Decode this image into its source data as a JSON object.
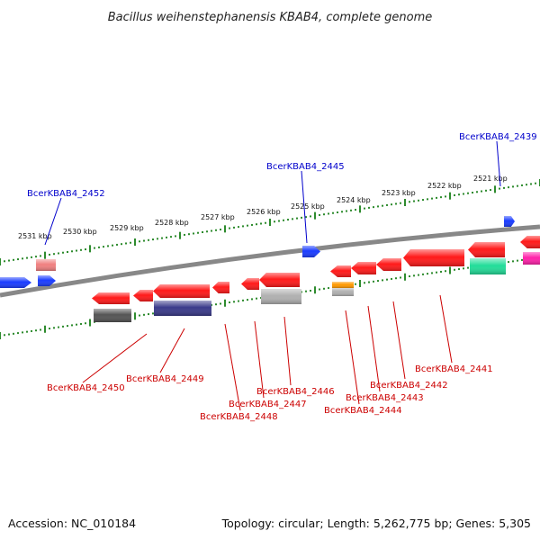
{
  "title": "Bacillus weihenstephanensis KBAB4, complete genome",
  "footer": {
    "accession": "Accession: NC_010184",
    "stats": "Topology: circular; Length: 5,262,775 bp; Genes: 5,305"
  },
  "colors": {
    "backbone": "#888888",
    "ruler": "#2e8b2e",
    "label_top": "#0000cc",
    "label_bottom": "#cc0000",
    "gene_red": "#ff1a1a",
    "gene_blue": "#1a3cff",
    "gene_pink": "#f08080",
    "gene_gray": "#555555",
    "gene_navy": "#3a3a8a",
    "gene_lightgray": "#b0b0b0",
    "gene_orange": "#ff9900",
    "gene_green": "#22dd99",
    "gene_magenta": "#ff22aa"
  },
  "kbp_ticks": [
    "2531 kbp",
    "2530 kbp",
    "2529 kbp",
    "2528 kbp",
    "2527 kbp",
    "2526 kbp",
    "2525 kbp",
    "2524 kbp",
    "2523 kbp",
    "2522 kbp",
    "2521 kbp"
  ],
  "top_labels": [
    "BcerKBAB4_2452",
    "BcerKBAB4_2445",
    "BcerKBAB4_2439"
  ],
  "bottom_labels": [
    "BcerKBAB4_2450",
    "BcerKBAB4_2449",
    "BcerKBAB4_2448",
    "BcerKBAB4_2447",
    "BcerKBAB4_2446",
    "BcerKBAB4_2444",
    "BcerKBAB4_2443",
    "BcerKBAB4_2442",
    "BcerKBAB4_2441"
  ]
}
